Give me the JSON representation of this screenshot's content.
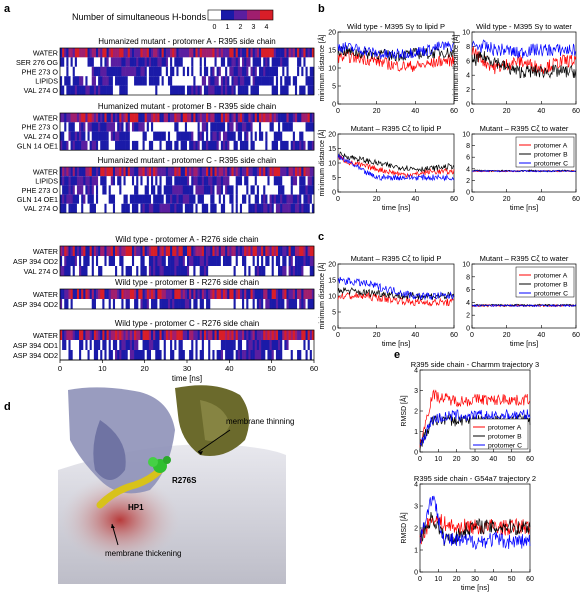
{
  "panel_labels": {
    "a": "a",
    "b": "b",
    "c": "c",
    "d": "d",
    "e": "e"
  },
  "colors": {
    "protomer_a": "#ff0000",
    "protomer_b": "#000000",
    "protomer_c": "#0000ff",
    "hb0": "#ffffff",
    "hb1": "#1a1aa8",
    "hb2": "#5a1ea0",
    "hb3": "#a01e6e",
    "hb4": "#d81e28"
  },
  "hbond_legend": {
    "title": "Number of simultaneous H-bonds",
    "ticks": [
      "0",
      "1",
      "2",
      "3",
      "4"
    ]
  },
  "panel_d": {
    "labels": [
      "R276S",
      "membrane thinning",
      "HP1",
      "membrane thickening"
    ]
  },
  "chart_data": [
    {
      "id": "a",
      "type": "heatmap",
      "xlabel": "time [ns]",
      "xlim": [
        0,
        60
      ],
      "xticks": [
        "0",
        "10",
        "20",
        "30",
        "40",
        "50",
        "60"
      ],
      "color_levels": [
        0,
        1,
        2,
        3,
        4
      ],
      "subplots": [
        {
          "title": "Humanized mutant - protomer A - R395 side chain",
          "rows": [
            "WATER",
            "SER 276 OG",
            "PHE 273 O",
            "LIPIDS",
            "VAL 274 O"
          ]
        },
        {
          "title": "Humanized mutant - protomer B - R395 side chain",
          "rows": [
            "WATER",
            "PHE 273 O",
            "VAL 274 O",
            "GLN 14 OE1"
          ]
        },
        {
          "title": "Humanized mutant - protomer C - R395 side chain",
          "rows": [
            "WATER",
            "LIPIDS",
            "PHE 273 O",
            "GLN 14 OE1",
            "VAL 274 O"
          ]
        },
        {
          "title": "Wild type - protomer A - R276 side chain",
          "rows": [
            "WATER",
            "ASP 394 OD2",
            "VAL 274 O"
          ]
        },
        {
          "title": "Wild type - protomer B - R276 side chain",
          "rows": [
            "WATER",
            "ASP 394 OD2"
          ]
        },
        {
          "title": "Wild type - protomer C - R276 side chain",
          "rows": [
            "WATER",
            "ASP 394 OD1",
            "ASP 394 OD2"
          ]
        }
      ]
    },
    {
      "id": "b1",
      "type": "line",
      "title": "Wild type - M395 Sγ to lipid P",
      "xlabel": "",
      "ylabel": "minimum distance [Å]",
      "xlim": [
        0,
        60
      ],
      "ylim": [
        0,
        20
      ],
      "xticks": [
        "0",
        "20",
        "40",
        "60"
      ],
      "yticks": [
        "0",
        "5",
        "10",
        "15",
        "20"
      ],
      "series": [
        {
          "name": "protomer A",
          "values": [
            13,
            13,
            12.5,
            12,
            11,
            10.5,
            10.5,
            11,
            12,
            12
          ]
        },
        {
          "name": "protomer B",
          "values": [
            15,
            14.5,
            14,
            14,
            13.5,
            13.5,
            14,
            14,
            14.5,
            14
          ]
        },
        {
          "name": "protomer C",
          "values": [
            16,
            15.5,
            15,
            14,
            13.5,
            14,
            14.5,
            15,
            16,
            16
          ]
        }
      ]
    },
    {
      "id": "b2",
      "type": "line",
      "title": "Wild type - M395 Sγ to water",
      "xlabel": "",
      "ylabel": "minimum distance [Å]",
      "xlim": [
        0,
        60
      ],
      "ylim": [
        0,
        10
      ],
      "xticks": [
        "0",
        "20",
        "40",
        "60"
      ],
      "yticks": [
        "0",
        "2",
        "4",
        "6",
        "8",
        "10"
      ],
      "series": [
        {
          "name": "protomer A",
          "values": [
            7.5,
            6,
            5,
            5.5,
            6,
            5.5,
            5,
            5.5,
            6,
            6
          ]
        },
        {
          "name": "protomer B",
          "values": [
            6,
            6.5,
            6,
            5,
            4.5,
            4.5,
            4.5,
            4.5,
            4.5,
            4.5
          ]
        },
        {
          "name": "protomer C",
          "values": [
            8,
            8,
            7.5,
            7.5,
            7,
            7.5,
            7.5,
            7.5,
            7.5,
            7.5
          ]
        }
      ]
    },
    {
      "id": "b3",
      "type": "line",
      "title": "Mutant – R395 Cζ to lipid P",
      "xlabel": "time [ns]",
      "ylabel": "minimum distance [Å]",
      "xlim": [
        0,
        60
      ],
      "ylim": [
        0,
        20
      ],
      "xticks": [
        "0",
        "20",
        "40",
        "60"
      ],
      "yticks": [
        "0",
        "5",
        "10",
        "15",
        "20"
      ],
      "series": [
        {
          "name": "protomer A",
          "values": [
            12,
            10,
            9,
            8,
            7,
            6,
            6,
            7,
            7,
            7
          ]
        },
        {
          "name": "protomer B",
          "values": [
            13,
            12,
            11,
            10,
            9,
            8.5,
            8,
            8,
            8.5,
            9
          ]
        },
        {
          "name": "protomer C",
          "values": [
            12,
            10,
            7,
            5,
            5,
            5,
            5,
            5,
            5,
            5
          ]
        }
      ]
    },
    {
      "id": "b4",
      "type": "line",
      "title": "Mutant – R395 Cζ to water",
      "xlabel": "time [ns]",
      "ylabel": "",
      "xlim": [
        0,
        60
      ],
      "ylim": [
        0,
        10
      ],
      "xticks": [
        "0",
        "20",
        "40",
        "60"
      ],
      "yticks": [
        "0",
        "2",
        "4",
        "6",
        "8",
        "10"
      ],
      "legend": "top-right",
      "series": [
        {
          "name": "protomer A",
          "values": [
            3.6,
            3.6,
            3.6,
            3.6,
            3.6,
            3.6,
            3.6,
            3.6,
            3.6,
            3.6
          ]
        },
        {
          "name": "protomer B",
          "values": [
            3.7,
            3.7,
            3.6,
            3.7,
            3.6,
            3.7,
            3.6,
            3.6,
            3.7,
            3.6
          ]
        },
        {
          "name": "protomer C",
          "values": [
            3.6,
            3.6,
            3.6,
            3.6,
            3.6,
            3.6,
            3.6,
            3.6,
            3.6,
            3.6
          ]
        }
      ]
    },
    {
      "id": "c1",
      "type": "line",
      "title": "Mutant – R395 Cζ to lipid P",
      "xlabel": "time [ns]",
      "ylabel": "minimum distance [Å]",
      "xlim": [
        0,
        60
      ],
      "ylim": [
        0,
        20
      ],
      "xticks": [
        "0",
        "20",
        "40",
        "60"
      ],
      "yticks": [
        "0",
        "5",
        "10",
        "15",
        "20"
      ],
      "series": [
        {
          "name": "protomer A",
          "values": [
            10,
            10,
            10,
            9.5,
            9,
            8.5,
            8,
            8,
            8,
            8
          ]
        },
        {
          "name": "protomer B",
          "values": [
            12,
            11.5,
            11,
            11,
            10.5,
            10,
            10,
            10,
            10,
            10
          ]
        },
        {
          "name": "protomer C",
          "values": [
            15,
            14.5,
            14,
            13,
            12,
            11,
            10,
            10,
            10,
            10
          ]
        }
      ]
    },
    {
      "id": "c2",
      "type": "line",
      "title": "Mutant – R395 Cζ  to water",
      "xlabel": "time [ns]",
      "ylabel": "",
      "xlim": [
        0,
        60
      ],
      "ylim": [
        0,
        10
      ],
      "xticks": [
        "0",
        "20",
        "40",
        "60"
      ],
      "yticks": [
        "0",
        "2",
        "4",
        "6",
        "8",
        "10"
      ],
      "legend": "top-right",
      "series": [
        {
          "name": "protomer A",
          "values": [
            3.5,
            3.5,
            3.5,
            3.5,
            3.5,
            3.5,
            3.5,
            3.5,
            3.5,
            3.5
          ]
        },
        {
          "name": "protomer B",
          "values": [
            3.6,
            3.5,
            3.6,
            3.5,
            3.6,
            3.5,
            3.6,
            3.5,
            3.6,
            3.5
          ]
        },
        {
          "name": "protomer C",
          "values": [
            3.5,
            3.5,
            3.5,
            3.5,
            3.5,
            3.5,
            3.5,
            3.5,
            3.5,
            3.5
          ]
        }
      ]
    },
    {
      "id": "e1",
      "type": "line",
      "title": "R395 side chain - Charmm trajectory 3",
      "xlabel": "",
      "ylabel": "RMSD [Å]",
      "xlim": [
        0,
        60
      ],
      "ylim": [
        0,
        4
      ],
      "xticks": [
        "0",
        "10",
        "20",
        "30",
        "40",
        "50",
        "60"
      ],
      "yticks": [
        "0",
        "1",
        "2",
        "3",
        "4"
      ],
      "legend": "bottom-right",
      "series": [
        {
          "name": "protomer A",
          "values": [
            0.3,
            2.8,
            2.6,
            2.5,
            2.5,
            2.6,
            2.5,
            2.6,
            2.5,
            2.6
          ]
        },
        {
          "name": "protomer B",
          "values": [
            0.3,
            1.5,
            1.6,
            1.5,
            1.6,
            1.5,
            1.6,
            1.5,
            1.6,
            1.6
          ]
        },
        {
          "name": "protomer C",
          "values": [
            0.3,
            1.6,
            1.7,
            1.8,
            1.7,
            1.8,
            1.7,
            1.8,
            1.8,
            1.8
          ]
        }
      ]
    },
    {
      "id": "e2",
      "type": "line",
      "title": "R395 side chain - G54a7 trajectory 2",
      "xlabel": "time [ns]",
      "ylabel": "RMSD [Å]",
      "xlim": [
        0,
        60
      ],
      "ylim": [
        0,
        4
      ],
      "xticks": [
        "0",
        "10",
        "20",
        "30",
        "40",
        "50",
        "60"
      ],
      "yticks": [
        "0",
        "1",
        "2",
        "3",
        "4"
      ],
      "series": [
        {
          "name": "protomer A",
          "values": [
            1.5,
            2.5,
            2.2,
            2.0,
            2.1,
            2.0,
            2.1,
            2.0,
            2.1,
            2.0
          ]
        },
        {
          "name": "protomer B",
          "values": [
            1.6,
            2.5,
            1.5,
            1.6,
            2.0,
            2.1,
            2.0,
            2.1,
            2.0,
            2.1
          ]
        },
        {
          "name": "protomer C",
          "values": [
            1.5,
            3.5,
            1.5,
            1.4,
            1.4,
            1.4,
            1.5,
            1.4,
            1.4,
            1.4
          ]
        }
      ]
    }
  ]
}
